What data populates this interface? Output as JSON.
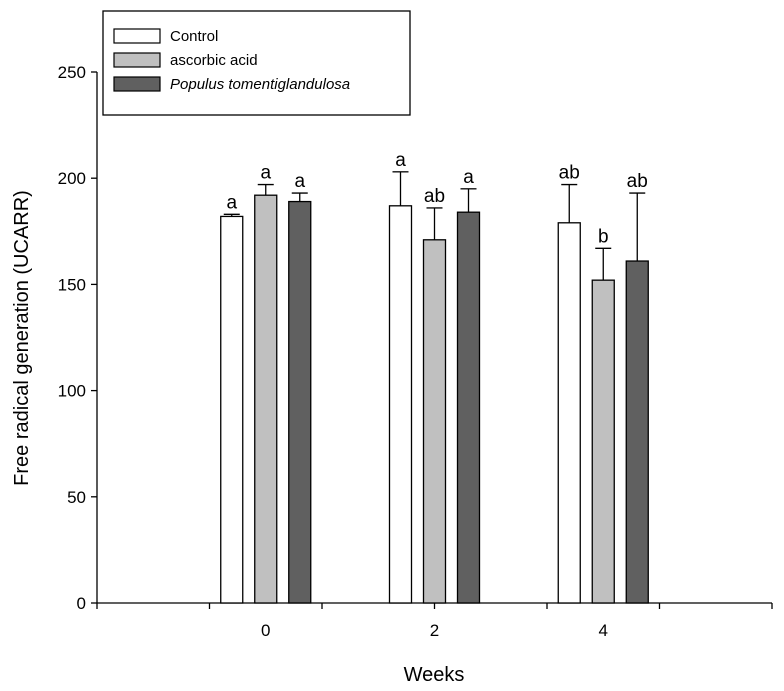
{
  "chart_data": {
    "type": "bar",
    "title": "",
    "xlabel": "Weeks",
    "ylabel": "Free radical generation (UCARR)",
    "categories": [
      "0",
      "2",
      "4"
    ],
    "ylim": [
      0,
      250
    ],
    "yticks": [
      0,
      50,
      100,
      150,
      200,
      250
    ],
    "grid": false,
    "legend_position": "top-left",
    "series": [
      {
        "name": "Control",
        "color": "#ffffff",
        "italic": false,
        "values": [
          182,
          187,
          179
        ],
        "errors": [
          1,
          16,
          18
        ],
        "labels": [
          "a",
          "a",
          "ab"
        ]
      },
      {
        "name": "ascorbic acid",
        "color": "#c0c0c0",
        "italic": false,
        "values": [
          192,
          171,
          152
        ],
        "errors": [
          5,
          15,
          15
        ],
        "labels": [
          "a",
          "ab",
          "b"
        ]
      },
      {
        "name": "Populus tomentiglandulosa",
        "color": "#606060",
        "italic": true,
        "values": [
          189,
          184,
          161
        ],
        "errors": [
          4,
          11,
          32
        ],
        "labels": [
          "a",
          "a",
          "ab"
        ]
      }
    ]
  }
}
